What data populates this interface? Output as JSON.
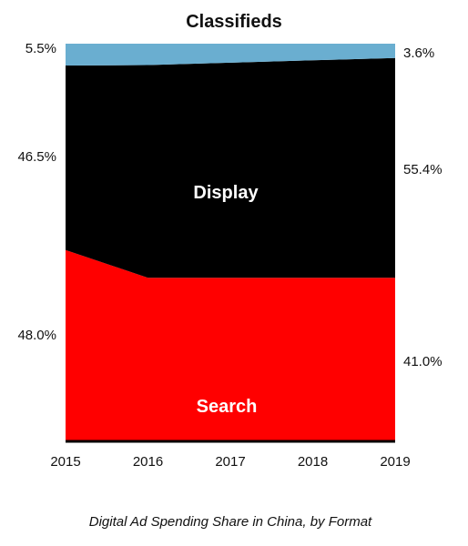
{
  "colors": {
    "search": "#ff0000",
    "display": "#000000",
    "classifieds": "#6aaed0",
    "axis": "#000000",
    "text": "#111111",
    "background": "#ffffff"
  },
  "chart_data": {
    "type": "area",
    "stacked": true,
    "percent": true,
    "caption": "Digital Ad Spending Share in China, by Format",
    "x": [
      "2015",
      "2016",
      "2017",
      "2018",
      "2019"
    ],
    "ylim": [
      0,
      100
    ],
    "grid": false,
    "series": [
      {
        "name": "Search",
        "color": "#ff0000",
        "values": [
          48.0,
          41.0,
          41.0,
          41.0,
          41.0
        ]
      },
      {
        "name": "Display",
        "color": "#000000",
        "values": [
          46.5,
          53.6,
          54.2,
          54.8,
          55.4
        ]
      },
      {
        "name": "Classifieds",
        "color": "#6aaed0",
        "values": [
          5.5,
          5.4,
          4.8,
          4.2,
          3.6
        ]
      }
    ],
    "start_labels": [
      "48.0%",
      "46.5%",
      "5.5%"
    ],
    "end_labels": [
      "41.0%",
      "55.4%",
      "3.6%"
    ]
  }
}
